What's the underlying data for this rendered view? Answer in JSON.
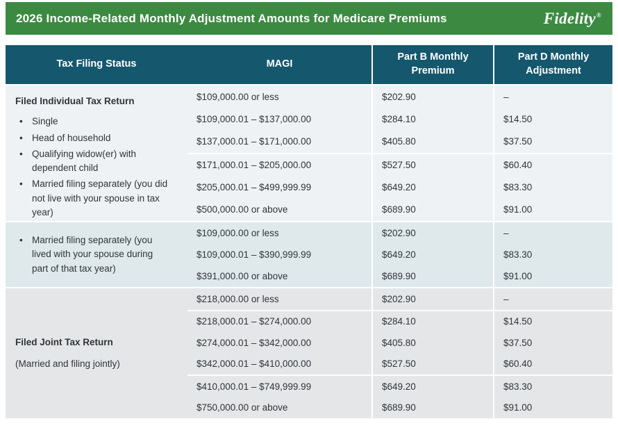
{
  "header": {
    "title": "2026 Income-Related Monthly Adjustment Amounts for Medicare Premiums",
    "brand": "Fidelity",
    "brand_mark": "®",
    "bg_color": "#3c8a41"
  },
  "table": {
    "header": {
      "bg_color": "#15576d",
      "columns": [
        "Tax Filing Status",
        "MAGI",
        "Part B Monthly Premium",
        "Part D Monthly Adjustment"
      ]
    },
    "sections": [
      {
        "bg_color": "#eff2f4",
        "label": {
          "heading": "Filed Individual Tax Return",
          "subtext": "",
          "bullets": [
            "Single",
            "Head of household",
            "Qualifying widow(er) with dependent child",
            "Married filing separately (you did not live with your spouse in tax year)"
          ]
        },
        "rows": [
          {
            "magi": "$109,000.00 or less",
            "part_b": "$202.90",
            "part_d": "–",
            "separator": false
          },
          {
            "magi": "$109,000.01 – $137,000.00",
            "part_b": "$284.10",
            "part_d": "$14.50",
            "separator": false
          },
          {
            "magi": "$137,000.01 – $171,000.00",
            "part_b": "$405.80",
            "part_d": "$37.50",
            "separator": false
          },
          {
            "magi": "$171,000.01 – $205,000.00",
            "part_b": "$527.50",
            "part_d": "$60.40",
            "separator": true
          },
          {
            "magi": "$205,000.01 – $499,999.99",
            "part_b": "$649.20",
            "part_d": "$83.30",
            "separator": false
          },
          {
            "magi": "$500,000.00 or above",
            "part_b": "$689.90",
            "part_d": "$91.00",
            "separator": false
          }
        ]
      },
      {
        "bg_color": "#dfe9ec",
        "label": {
          "heading": "",
          "subtext": "",
          "bullets": [
            "Married filing separately (you lived with your spouse during part of that tax year)"
          ]
        },
        "rows": [
          {
            "magi": "$109,000.00 or less",
            "part_b": "$202.90",
            "part_d": "–",
            "separator": false
          },
          {
            "magi": "$109,000.01 – $390,999.99",
            "part_b": "$649.20",
            "part_d": "$83.30",
            "separator": false
          },
          {
            "magi": "$391,000.00 or above",
            "part_b": "$689.90",
            "part_d": "$91.00",
            "separator": false
          }
        ]
      },
      {
        "bg_color": "#e4e6e8",
        "label": {
          "heading": "Filed Joint Tax Return",
          "subtext": "(Married and filing jointly)",
          "bullets": []
        },
        "rows": [
          {
            "magi": "$218,000.00 or less",
            "part_b": "$202.90",
            "part_d": "–",
            "separator": false
          },
          {
            "magi": "$218,000.01 – $274,000.00",
            "part_b": "$284.10",
            "part_d": "$14.50",
            "separator": true
          },
          {
            "magi": "$274,000.01 – $342,000.00",
            "part_b": "$405.80",
            "part_d": "$37.50",
            "separator": false
          },
          {
            "magi": "$342,000.01 – $410,000.00",
            "part_b": "$527.50",
            "part_d": "$60.40",
            "separator": false
          },
          {
            "magi": "$410,000.01 – $749,999.99",
            "part_b": "$649.20",
            "part_d": "$83.30",
            "separator": true
          },
          {
            "magi": "$750,000.00 or above",
            "part_b": "$689.90",
            "part_d": "$91.00",
            "separator": false
          }
        ]
      }
    ]
  }
}
